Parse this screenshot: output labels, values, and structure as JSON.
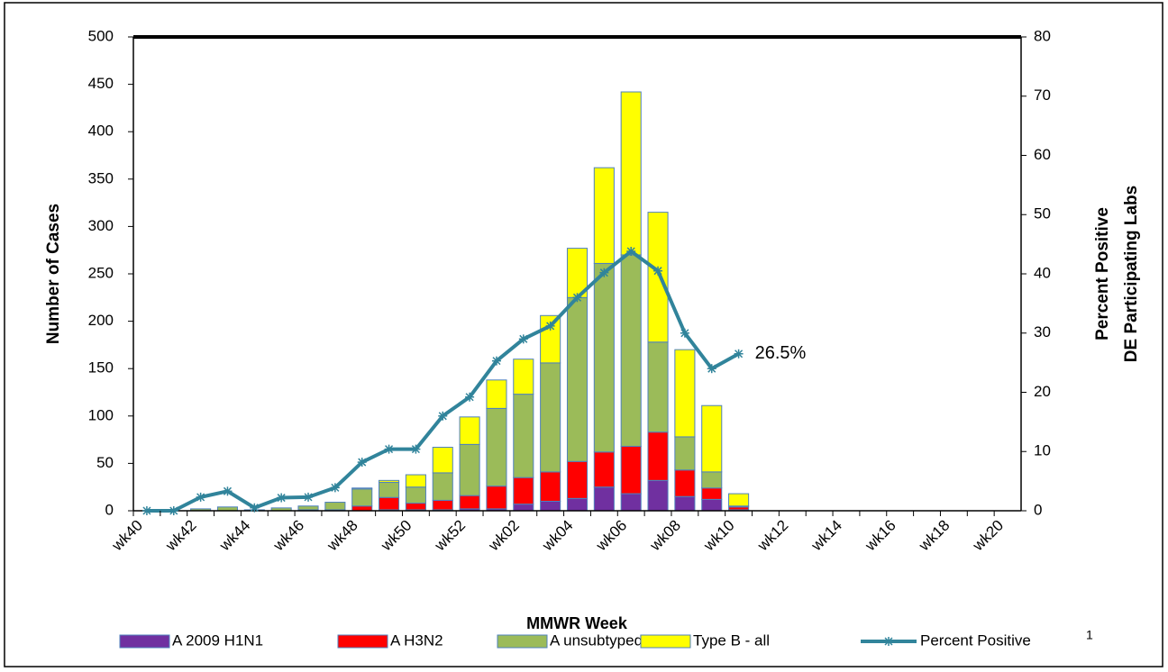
{
  "chart_data": {
    "type": "bar",
    "x_label": "MMWR Week",
    "y_label": "Number of Cases",
    "y2_label": [
      "Percent Positive",
      "DE Participating Labs"
    ],
    "legend_footnote": "1",
    "stacked": true,
    "grid": false,
    "legend_position": "bottom",
    "categories": [
      "wk40",
      null,
      "wk42",
      null,
      "wk44",
      null,
      "wk46",
      null,
      "wk48",
      null,
      "wk50",
      null,
      "wk52",
      null,
      "wk02",
      null,
      "wk04",
      null,
      "wk06",
      null,
      "wk08",
      null,
      "wk10",
      null,
      "wk12",
      null,
      "wk14",
      null,
      "wk16",
      null,
      "wk18",
      null,
      "wk20"
    ],
    "ylim": [
      0,
      500
    ],
    "yticks": [
      0,
      50,
      100,
      150,
      200,
      250,
      300,
      350,
      400,
      450,
      500
    ],
    "y2lim": [
      0,
      80
    ],
    "y2ticks": [
      0,
      10,
      20,
      30,
      40,
      50,
      60,
      70,
      80
    ],
    "series": [
      {
        "name": "A 2009 H1N1",
        "color": "#7030a0",
        "values": [
          0,
          0,
          0,
          0,
          0,
          0,
          0,
          0,
          0,
          1,
          1,
          1,
          2,
          2,
          7,
          10,
          13,
          25,
          18,
          32,
          15,
          12,
          1,
          0,
          0,
          0,
          0,
          0,
          0,
          0,
          0,
          0,
          0
        ]
      },
      {
        "name": "A H3N2",
        "color": "#ff0000",
        "values": [
          0,
          0,
          0,
          0,
          0,
          0,
          1,
          1,
          5,
          13,
          7,
          10,
          14,
          24,
          28,
          31,
          39,
          37,
          50,
          51,
          28,
          12,
          3,
          0,
          0,
          0,
          0,
          0,
          0,
          0,
          0,
          0,
          0
        ]
      },
      {
        "name": "A unsubtyped",
        "color": "#9bbb59",
        "values": [
          0,
          0,
          2,
          4,
          1,
          3,
          4,
          8,
          18,
          16,
          17,
          29,
          54,
          82,
          88,
          115,
          173,
          199,
          202,
          95,
          35,
          17,
          1,
          0,
          0,
          0,
          0,
          0,
          0,
          0,
          0,
          0,
          0
        ]
      },
      {
        "name": "Type B - all",
        "color": "#ffff00",
        "values": [
          0,
          0,
          0,
          0,
          0,
          0,
          0,
          0,
          1,
          2,
          13,
          27,
          29,
          30,
          37,
          50,
          52,
          101,
          172,
          137,
          92,
          70,
          13,
          0,
          0,
          0,
          0,
          0,
          0,
          0,
          0,
          0,
          0
        ]
      },
      {
        "name": "Percent Positive",
        "type": "line",
        "axis": "y2",
        "color": "#31849b",
        "values": [
          0,
          0,
          2.3,
          3.3,
          0.5,
          2.2,
          2.3,
          3.9,
          8.2,
          10.4,
          10.4,
          16,
          19.2,
          25.3,
          29,
          31.2,
          36,
          40.2,
          43.8,
          40.5,
          30,
          24,
          26.5,
          null,
          null,
          null,
          null,
          null,
          null,
          null,
          null,
          null,
          null
        ],
        "value_labels": [
          null,
          null,
          null,
          null,
          null,
          null,
          null,
          null,
          null,
          null,
          null,
          null,
          null,
          null,
          null,
          null,
          null,
          null,
          null,
          null,
          null,
          null,
          "26.5%",
          null,
          null,
          null,
          null,
          null,
          null,
          null,
          null,
          null,
          null
        ]
      }
    ]
  }
}
